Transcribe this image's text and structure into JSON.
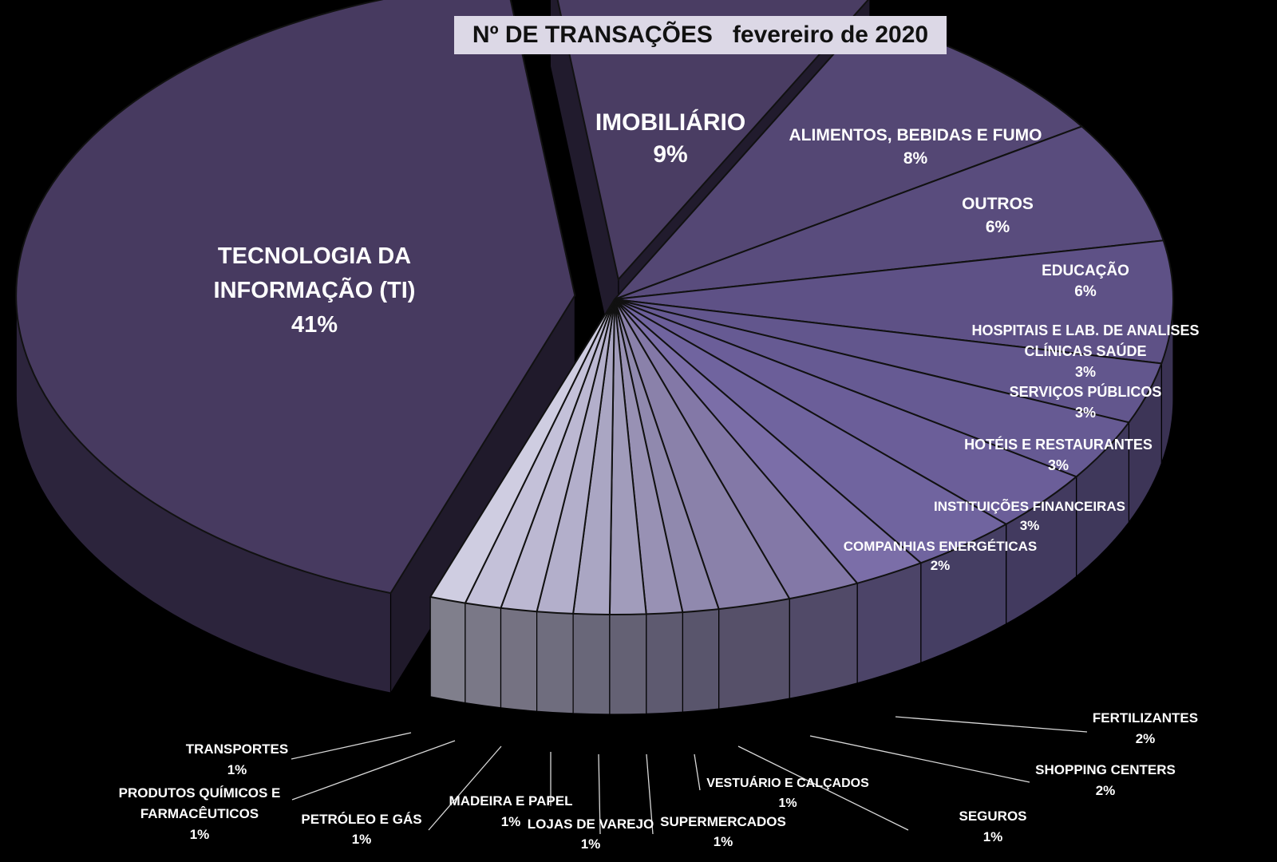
{
  "chart_data": {
    "type": "pie",
    "title": "Nº DE TRANSAÇÕES   fevereiro de 2020",
    "slices": [
      {
        "label": "IMOBILIÁRIO",
        "value": 9,
        "pct": "9%"
      },
      {
        "label": "ALIMENTOS, BEBIDAS E FUMO",
        "value": 8,
        "pct": "8%"
      },
      {
        "label": "OUTROS",
        "value": 6,
        "pct": "6%"
      },
      {
        "label": "EDUCAÇÃO",
        "value": 6,
        "pct": "6%"
      },
      {
        "label": "HOSPITAIS E LAB. DE ANALISES CLÍNICAS SAÚDE",
        "value": 3,
        "pct": "3%"
      },
      {
        "label": "SERVIÇOS PÚBLICOS",
        "value": 3,
        "pct": "3%"
      },
      {
        "label": "HOTÉIS E RESTAURANTES",
        "value": 3,
        "pct": "3%"
      },
      {
        "label": "INSTITUIÇÕES FINANCEIRAS",
        "value": 3,
        "pct": "3%"
      },
      {
        "label": "COMPANHIAS ENERGÉTICAS",
        "value": 2,
        "pct": "2%"
      },
      {
        "label": "FERTILIZANTES",
        "value": 2,
        "pct": "2%"
      },
      {
        "label": "SHOPPING CENTERS",
        "value": 2,
        "pct": "2%"
      },
      {
        "label": "SEGUROS",
        "value": 1,
        "pct": "1%"
      },
      {
        "label": "VESTUÁRIO E CALÇADOS",
        "value": 1,
        "pct": "1%"
      },
      {
        "label": "SUPERMERCADOS",
        "value": 1,
        "pct": "1%"
      },
      {
        "label": "LOJAS DE VAREJO",
        "value": 1,
        "pct": "1%"
      },
      {
        "label": "MADEIRA E PAPEL",
        "value": 1,
        "pct": "1%"
      },
      {
        "label": "PETRÓLEO E GÁS",
        "value": 1,
        "pct": "1%"
      },
      {
        "label": "PRODUTOS QUÍMICOS E FARMACÊUTICOS",
        "value": 1,
        "pct": "1%"
      },
      {
        "label": "TRANSPORTES",
        "value": 1,
        "pct": "1%"
      },
      {
        "label": "TECNOLOGIA DA INFORMAÇÃO (TI)",
        "value": 41,
        "pct": "41%"
      }
    ],
    "label_lines": [
      [
        "IMOBILIÁRIO",
        "9%"
      ],
      [
        "ALIMENTOS, BEBIDAS E FUMO",
        "8%"
      ],
      [
        "OUTROS",
        "6%"
      ],
      [
        "EDUCAÇÃO",
        "6%"
      ],
      [
        "HOSPITAIS E LAB. DE ANALISES",
        "CLÍNICAS SAÚDE",
        "3%"
      ],
      [
        "SERVIÇOS PÚBLICOS",
        "3%"
      ],
      [
        "HOTÉIS E RESTAURANTES",
        "3%"
      ],
      [
        "INSTITUIÇÕES FINANCEIRAS",
        "3%"
      ],
      [
        "COMPANHIAS ENERGÉTICAS",
        "2%"
      ],
      [
        "FERTILIZANTES",
        "2%"
      ],
      [
        "SHOPPING CENTERS",
        "2%"
      ],
      [
        "SEGUROS",
        "1%"
      ],
      [
        "VESTUÁRIO E CALÇADOS",
        "1%"
      ],
      [
        "SUPERMERCADOS",
        "1%"
      ],
      [
        "LOJAS DE VAREJO",
        "1%"
      ],
      [
        "MADEIRA E PAPEL",
        "1%"
      ],
      [
        "PETRÓLEO E GÁS",
        "1%"
      ],
      [
        "PRODUTOS QUÍMICOS E",
        "FARMACÊUTICOS",
        "1%"
      ],
      [
        "TRANSPORTES",
        "1%"
      ],
      [
        "TECNOLOGIA DA",
        "INFORMAÇÃO (TI)",
        "41%"
      ]
    ],
    "legend": "none",
    "style": "3d-exploded"
  }
}
